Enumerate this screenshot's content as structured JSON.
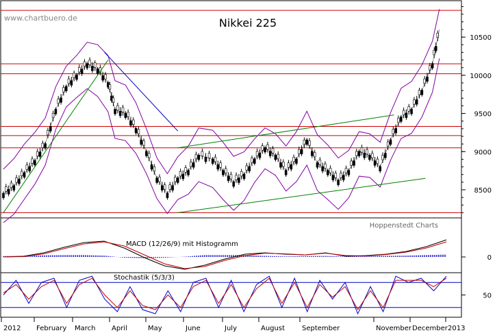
{
  "chart_data": [
    {
      "type": "candlestick",
      "title": "Nikkei 225",
      "watermark": "www.chartbuero.de",
      "credit": "Hoppenstedt Charts",
      "x_labels": [
        "2012",
        "February",
        "March",
        "April",
        "May",
        "June",
        "July",
        "August",
        "September",
        "November",
        "December",
        "2013"
      ],
      "y_ticks": [
        8500,
        9000,
        9500,
        10000,
        10500
      ],
      "ylim": [
        8150,
        10950
      ],
      "horizontal_levels": [
        10850,
        10150,
        10020,
        9330,
        9210,
        9050,
        8200
      ],
      "price_series": [
        {
          "t": 0.0,
          "v": 8450
        },
        {
          "t": 0.3,
          "v": 8550
        },
        {
          "t": 0.6,
          "v": 8720
        },
        {
          "t": 0.9,
          "v": 8880
        },
        {
          "t": 1.2,
          "v": 9100
        },
        {
          "t": 1.5,
          "v": 9550
        },
        {
          "t": 1.8,
          "v": 9850
        },
        {
          "t": 2.1,
          "v": 10000
        },
        {
          "t": 2.4,
          "v": 10150
        },
        {
          "t": 2.7,
          "v": 10080
        },
        {
          "t": 3.0,
          "v": 9900
        },
        {
          "t": 3.2,
          "v": 9550
        },
        {
          "t": 3.5,
          "v": 9500
        },
        {
          "t": 3.8,
          "v": 9300
        },
        {
          "t": 4.1,
          "v": 9000
        },
        {
          "t": 4.4,
          "v": 8650
        },
        {
          "t": 4.7,
          "v": 8450
        },
        {
          "t": 5.0,
          "v": 8650
        },
        {
          "t": 5.3,
          "v": 8750
        },
        {
          "t": 5.6,
          "v": 8950
        },
        {
          "t": 6.0,
          "v": 8900
        },
        {
          "t": 6.3,
          "v": 8750
        },
        {
          "t": 6.6,
          "v": 8600
        },
        {
          "t": 6.9,
          "v": 8700
        },
        {
          "t": 7.2,
          "v": 8900
        },
        {
          "t": 7.5,
          "v": 9050
        },
        {
          "t": 7.8,
          "v": 8950
        },
        {
          "t": 8.1,
          "v": 8750
        },
        {
          "t": 8.4,
          "v": 8900
        },
        {
          "t": 8.7,
          "v": 9150
        },
        {
          "t": 9.0,
          "v": 8850
        },
        {
          "t": 9.3,
          "v": 8750
        },
        {
          "t": 9.6,
          "v": 8620
        },
        {
          "t": 9.9,
          "v": 8750
        },
        {
          "t": 10.2,
          "v": 9000
        },
        {
          "t": 10.5,
          "v": 8950
        },
        {
          "t": 10.8,
          "v": 8800
        },
        {
          "t": 11.1,
          "v": 9150
        },
        {
          "t": 11.4,
          "v": 9450
        },
        {
          "t": 11.7,
          "v": 9550
        },
        {
          "t": 12.0,
          "v": 9800
        },
        {
          "t": 12.3,
          "v": 10150
        },
        {
          "t": 12.5,
          "v": 10600
        }
      ],
      "trendlines": [
        {
          "name": "channel-upper",
          "color": "#008000",
          "from": [
            5.0,
            9050
          ],
          "to": [
            11.2,
            9480
          ]
        },
        {
          "name": "channel-lower",
          "color": "#008000",
          "from": [
            5.0,
            8200
          ],
          "to": [
            12.1,
            8650
          ]
        },
        {
          "name": "rise",
          "color": "#008000",
          "from": [
            0.0,
            8200
          ],
          "to": [
            3.0,
            10200
          ]
        },
        {
          "name": "down",
          "color": "#0000c0",
          "from": [
            2.9,
            10300
          ],
          "to": [
            5.0,
            9270
          ]
        }
      ]
    },
    {
      "type": "line",
      "title": "MACD (12/26/9) mit Histogramm",
      "y_ticks": [
        0
      ],
      "series": [
        {
          "color": "#000000",
          "values": [
            0,
            10,
            60,
            140,
            210,
            230,
            130,
            -10,
            -130,
            -180,
            -120,
            -30,
            40,
            60,
            40,
            30,
            60,
            10,
            20,
            40,
            80,
            150,
            250
          ]
        },
        {
          "color": "#c00000",
          "values": [
            0,
            5,
            45,
            120,
            190,
            220,
            160,
            30,
            -100,
            -170,
            -140,
            -50,
            20,
            55,
            45,
            30,
            55,
            20,
            15,
            35,
            70,
            130,
            220
          ]
        }
      ]
    },
    {
      "type": "line",
      "title": "Stochastik (5/3/3)",
      "y_ticks": [
        50
      ],
      "levels": [
        80,
        20
      ],
      "series": [
        {
          "color": "#0000c0",
          "values": [
            50,
            85,
            30,
            80,
            90,
            20,
            85,
            95,
            40,
            10,
            70,
            15,
            5,
            60,
            10,
            80,
            90,
            20,
            85,
            10,
            75,
            95,
            20,
            90,
            10,
            85,
            40,
            80,
            5,
            70,
            10,
            95,
            80,
            90,
            60,
            95
          ]
        },
        {
          "color": "#c00000",
          "values": [
            55,
            75,
            40,
            70,
            85,
            30,
            75,
            90,
            50,
            20,
            60,
            25,
            15,
            50,
            20,
            70,
            85,
            30,
            75,
            20,
            65,
            90,
            30,
            80,
            20,
            75,
            45,
            70,
            15,
            60,
            20,
            85,
            85,
            85,
            70,
            90
          ]
        }
      ]
    }
  ]
}
